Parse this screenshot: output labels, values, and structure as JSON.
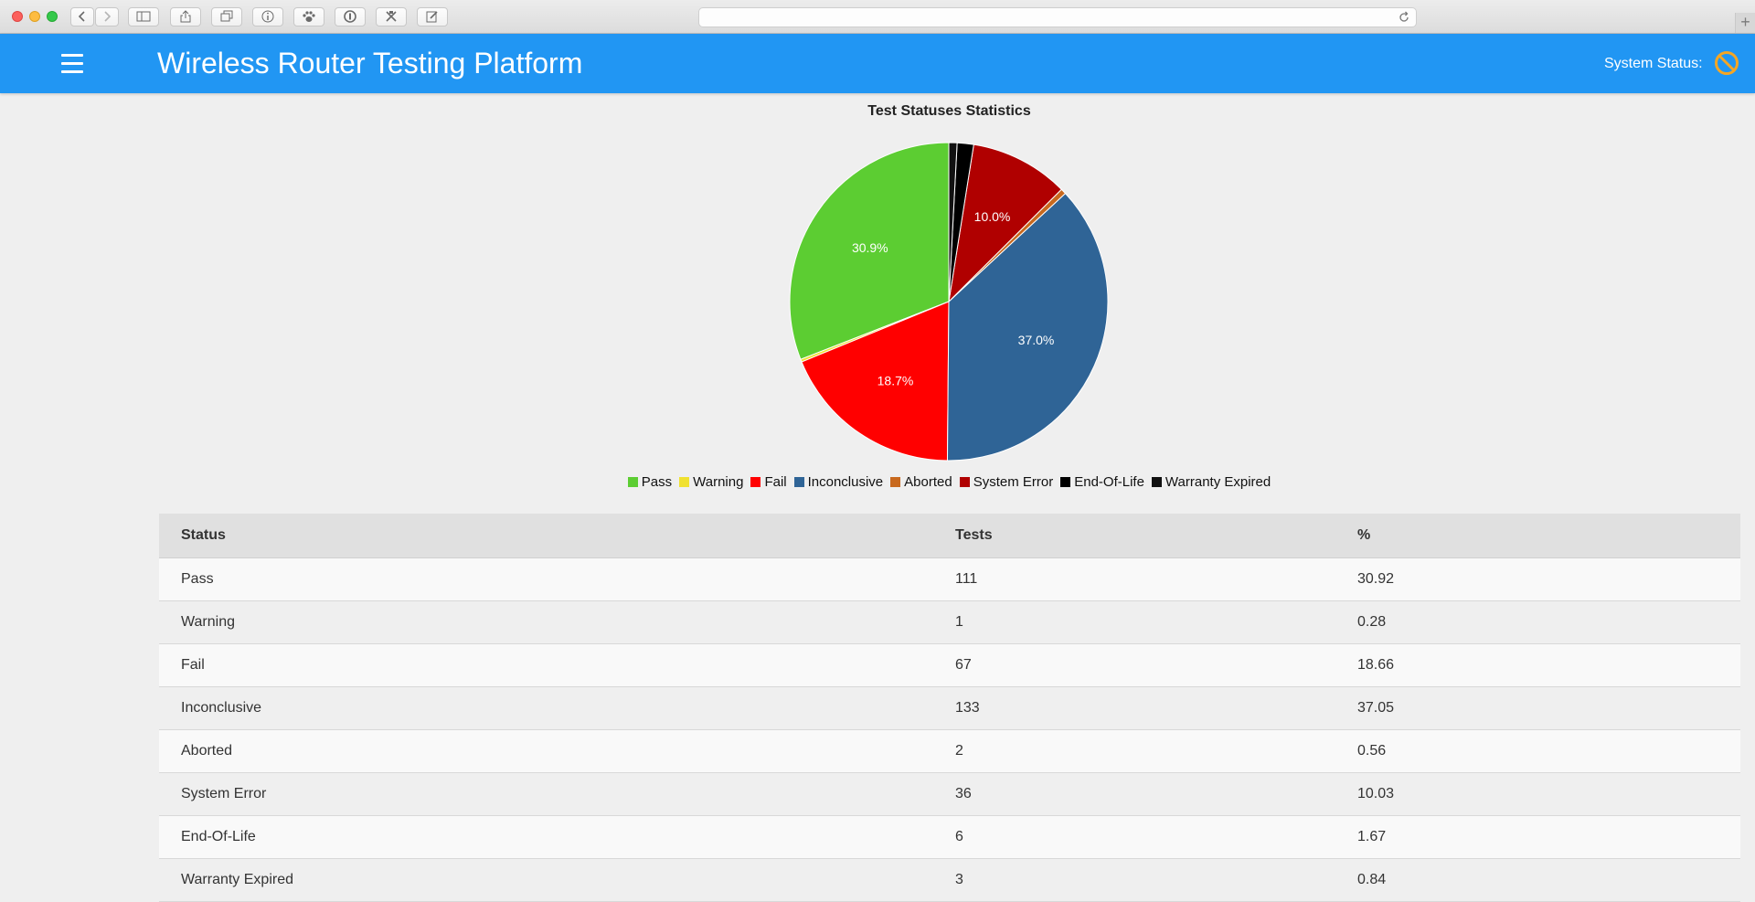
{
  "header": {
    "title": "Wireless Router Testing Platform",
    "system_status_label": "System Status:"
  },
  "colors": {
    "header_bg": "#2196f3",
    "status_icon": "#f5a623"
  },
  "icons": {
    "menu": "hamburger-icon",
    "system_status": "prohibited-icon"
  },
  "chart_data": {
    "type": "pie",
    "title": "Test Statuses Statistics",
    "categories": [
      "Pass",
      "Warning",
      "Fail",
      "Inconclusive",
      "Aborted",
      "System Error",
      "End-Of-Life",
      "Warranty Expired"
    ],
    "values": [
      111,
      1,
      67,
      133,
      2,
      36,
      6,
      3
    ],
    "colors": [
      "#5ccd32",
      "#f0e130",
      "#ff0000",
      "#2f6496",
      "#c8691e",
      "#b00000",
      "#000000",
      "#111111"
    ],
    "slice_labels": [
      "30.9%",
      "",
      "18.7%",
      "37.0%",
      "",
      "10.0%",
      "",
      ""
    ],
    "legend_position": "bottom"
  },
  "table": {
    "headers": [
      "Status",
      "Tests",
      "%"
    ],
    "rows": [
      [
        "Pass",
        "111",
        "30.92"
      ],
      [
        "Warning",
        "1",
        "0.28"
      ],
      [
        "Fail",
        "67",
        "18.66"
      ],
      [
        "Inconclusive",
        "133",
        "37.05"
      ],
      [
        "Aborted",
        "2",
        "0.56"
      ],
      [
        "System Error",
        "36",
        "10.03"
      ],
      [
        "End-Of-Life",
        "6",
        "1.67"
      ],
      [
        "Warranty Expired",
        "3",
        "0.84"
      ]
    ]
  }
}
